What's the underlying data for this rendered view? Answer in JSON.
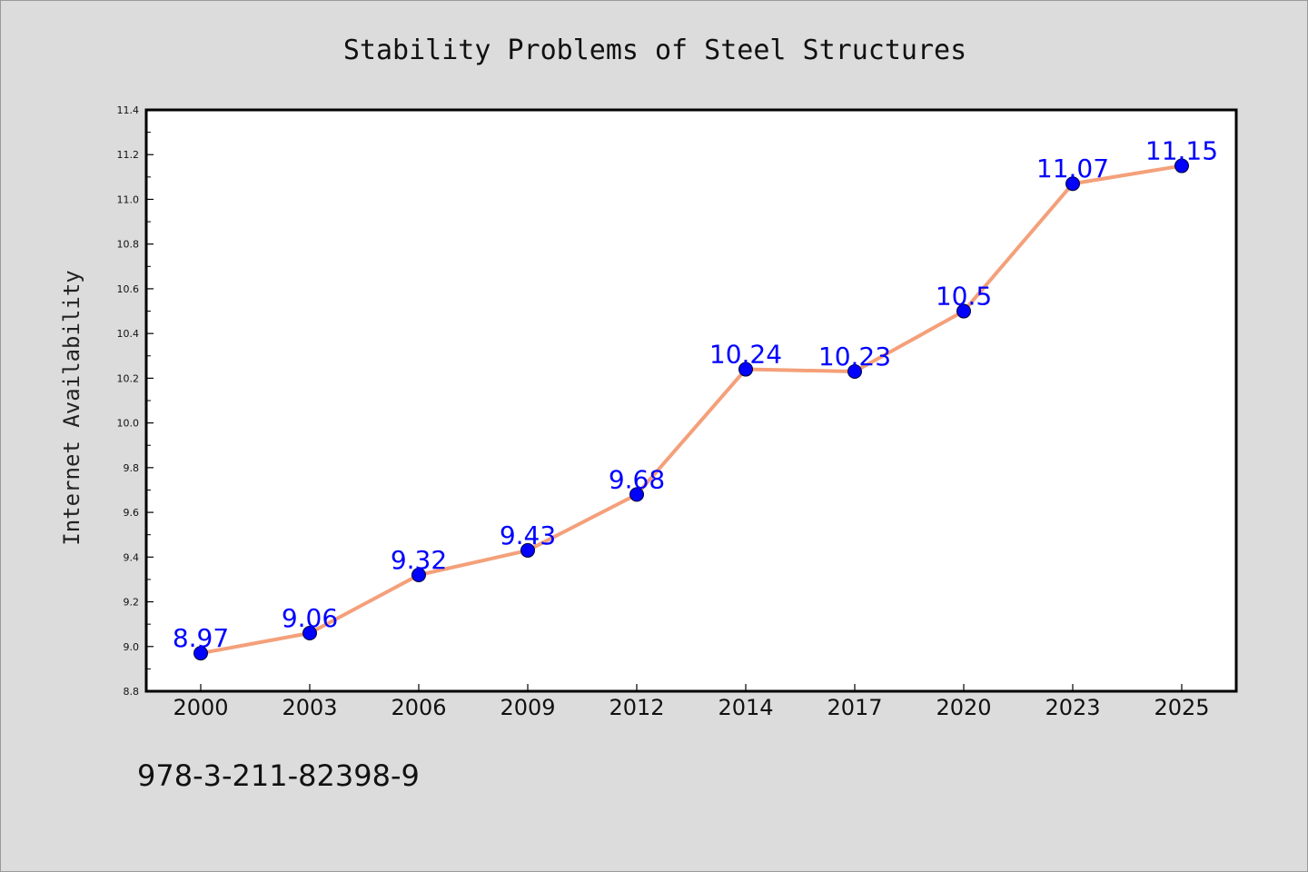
{
  "chart_data": {
    "type": "line",
    "title": "Stability Problems of Steel Structures",
    "xlabel": "",
    "ylabel": "Internet Availability",
    "categories": [
      "2000",
      "2003",
      "2006",
      "2009",
      "2012",
      "2014",
      "2017",
      "2020",
      "2023",
      "2025"
    ],
    "series": [
      {
        "values": [
          8.97,
          9.06,
          9.32,
          9.43,
          9.68,
          10.24,
          10.23,
          10.5,
          11.07,
          11.15
        ],
        "data_labels": [
          "8.97",
          "9.06",
          "9.32",
          "9.43",
          "9.68",
          "10.24",
          "10.23",
          "10.5",
          "11.07",
          "11.15"
        ],
        "line_color": "#f4a07a",
        "marker_color": "#0000ff"
      }
    ],
    "ylim": [
      8.8,
      11.4
    ],
    "yticks": [
      "8.8",
      "9.0",
      "9.2",
      "9.4",
      "9.6",
      "9.8",
      "10.0",
      "10.2",
      "10.4",
      "10.6",
      "10.8",
      "11.0",
      "11.2",
      "11.4"
    ],
    "grid": false,
    "legend": "none"
  },
  "footer": {
    "isbn": "978-3-211-82398-9"
  },
  "colors": {
    "background": "#dcdcdc",
    "plot_background": "#ffffff",
    "line": "#f4a07a",
    "marker": "#0000ff",
    "label": "#0000ff"
  }
}
